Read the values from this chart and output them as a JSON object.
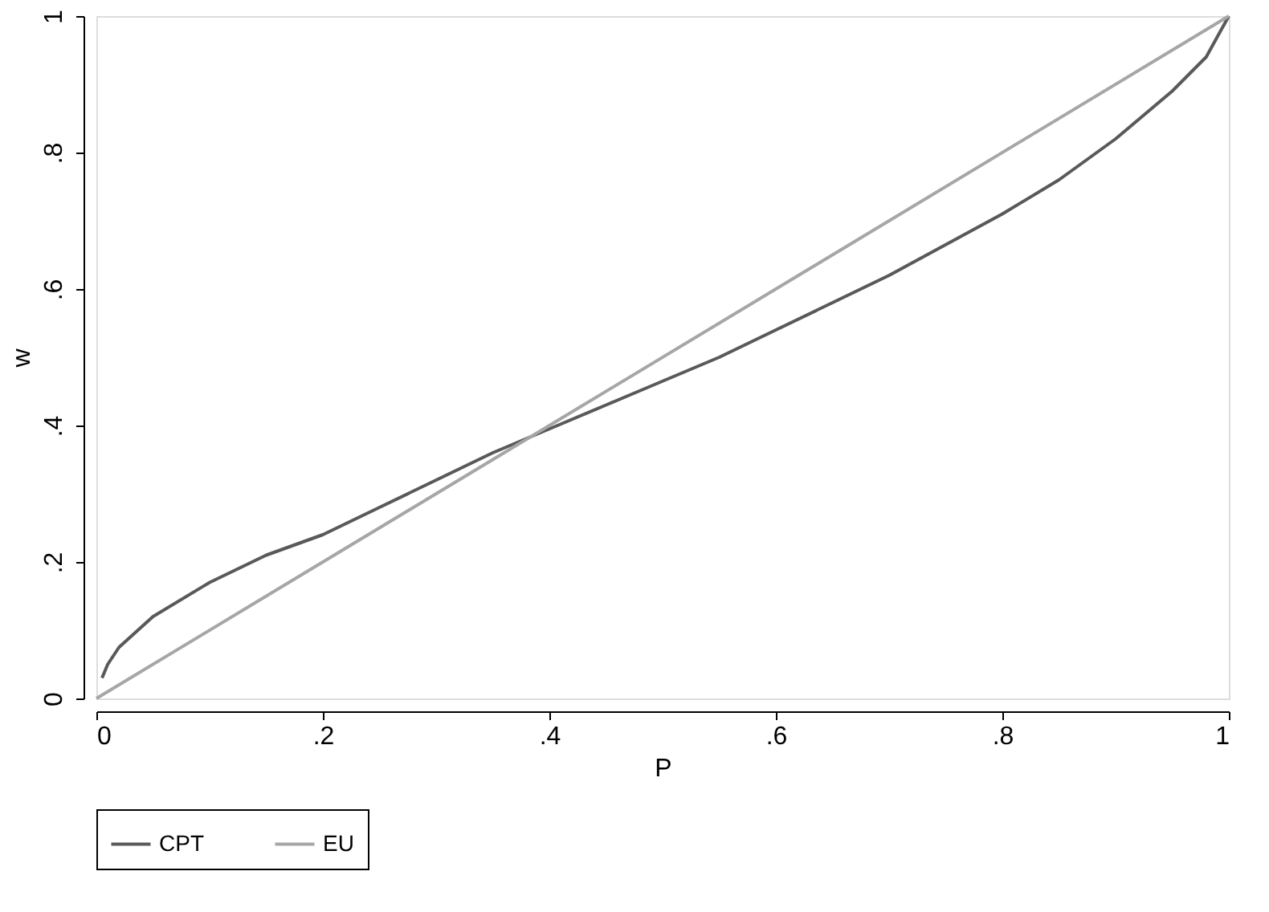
{
  "chart_data": {
    "type": "line",
    "xlabel": "P",
    "ylabel": "w",
    "xlim": [
      0,
      1
    ],
    "ylim": [
      0,
      1
    ],
    "xticks": [
      0,
      {
        "value": 0.2,
        "label": ".2"
      },
      {
        "value": 0.4,
        "label": ".4"
      },
      {
        "value": 0.6,
        "label": ".6"
      },
      {
        "value": 0.8,
        "label": ".8"
      },
      1
    ],
    "yticks": [
      0,
      {
        "value": 0.2,
        "label": ".2"
      },
      {
        "value": 0.4,
        "label": ".4"
      },
      {
        "value": 0.6,
        "label": ".6"
      },
      {
        "value": 0.8,
        "label": ".8"
      },
      1
    ],
    "grid": false,
    "legend": "bottom",
    "marker": "none",
    "line_style": "solid",
    "series": [
      {
        "name": "CPT",
        "color": "#595959",
        "x": [
          0.005,
          0.01,
          0.02,
          0.05,
          0.1,
          0.15,
          0.2,
          0.25,
          0.3,
          0.35,
          0.4,
          0.45,
          0.5,
          0.55,
          0.6,
          0.65,
          0.7,
          0.75,
          0.8,
          0.85,
          0.9,
          0.95,
          0.98,
          1
        ],
        "values": [
          0.03,
          0.05,
          0.075,
          0.12,
          0.17,
          0.21,
          0.24,
          0.28,
          0.32,
          0.36,
          0.395,
          0.43,
          0.465,
          0.5,
          0.54,
          0.58,
          0.62,
          0.665,
          0.71,
          0.76,
          0.82,
          0.89,
          0.94,
          1
        ]
      },
      {
        "name": "EU",
        "color": "#a6a6a6",
        "x": [
          0,
          1
        ],
        "values": [
          0,
          1
        ]
      }
    ]
  }
}
